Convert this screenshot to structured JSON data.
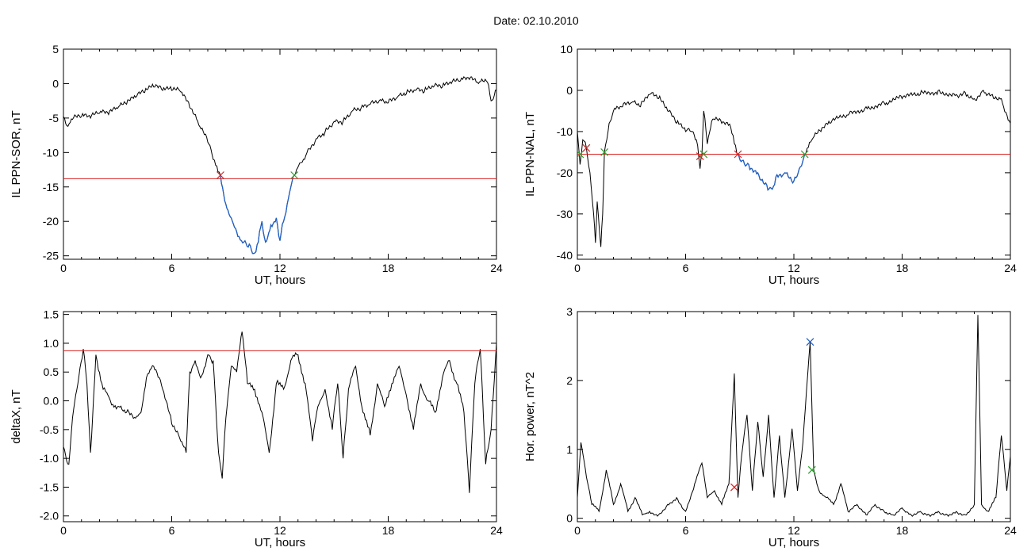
{
  "header": {
    "title": "Date:  02.10.2010"
  },
  "chart_data": [
    {
      "type": "line",
      "ylabel": "IL PPN-SOR, nT",
      "xlabel": "UT, hours",
      "xlim": [
        0,
        24
      ],
      "ylim": [
        -25.5,
        5
      ],
      "xticks": [
        "0",
        "6",
        "12",
        "18",
        "24"
      ],
      "yticks": [
        "5",
        "0",
        "-5",
        "-10",
        "-15",
        "-20",
        "-25"
      ],
      "threshold": -13.8,
      "series_color": "#000000",
      "highlight_color": "#1f5fc4",
      "threshold_color": "#d92020",
      "highlight_range": [
        8.7,
        12.8
      ],
      "points": [
        [
          0,
          -4.8
        ],
        [
          0.25,
          -6.2
        ],
        [
          0.5,
          -5.2
        ],
        [
          1,
          -4.8
        ],
        [
          1.5,
          -5
        ],
        [
          2,
          -4.3
        ],
        [
          2.5,
          -4.5
        ],
        [
          3,
          -3.6
        ],
        [
          3.5,
          -3
        ],
        [
          4,
          -2
        ],
        [
          4.5,
          -1.3
        ],
        [
          5,
          -0.5
        ],
        [
          5.5,
          -1
        ],
        [
          6,
          -1
        ],
        [
          6.5,
          -1.2
        ],
        [
          7,
          -3.5
        ],
        [
          7.5,
          -6
        ],
        [
          8,
          -8.5
        ],
        [
          8.3,
          -11
        ],
        [
          8.7,
          -13.3
        ],
        [
          9,
          -17.5
        ],
        [
          9.3,
          -19.5
        ],
        [
          9.6,
          -21.5
        ],
        [
          10,
          -23
        ],
        [
          10.3,
          -23.3
        ],
        [
          10.6,
          -24.6
        ],
        [
          10.8,
          -23
        ],
        [
          11,
          -20
        ],
        [
          11.2,
          -23
        ],
        [
          11.5,
          -20.5
        ],
        [
          11.8,
          -19.5
        ],
        [
          12,
          -22.8
        ],
        [
          12.2,
          -20
        ],
        [
          12.4,
          -17.5
        ],
        [
          12.6,
          -15
        ],
        [
          12.8,
          -13.3
        ],
        [
          13.1,
          -11.5
        ],
        [
          13.5,
          -10
        ],
        [
          14,
          -8
        ],
        [
          14.5,
          -7
        ],
        [
          15,
          -5.5
        ],
        [
          15.5,
          -5.5
        ],
        [
          16,
          -4
        ],
        [
          16.5,
          -3.5
        ],
        [
          17,
          -3
        ],
        [
          17.5,
          -2.5
        ],
        [
          18,
          -2.8
        ],
        [
          18.5,
          -2
        ],
        [
          19,
          -1.5
        ],
        [
          19.5,
          -1
        ],
        [
          20,
          -1.2
        ],
        [
          20.5,
          -0.5
        ],
        [
          21,
          -0.5
        ],
        [
          21.5,
          0
        ],
        [
          22,
          0.4
        ],
        [
          22.5,
          0.6
        ],
        [
          23,
          0
        ],
        [
          23.5,
          0.2
        ],
        [
          23.7,
          -2.5
        ],
        [
          24,
          -1
        ]
      ],
      "markers": [
        {
          "x": 8.7,
          "y": -13.3,
          "color": "#d92020"
        },
        {
          "x": 12.8,
          "y": -13.3,
          "color": "#2aa02a"
        }
      ]
    },
    {
      "type": "line",
      "ylabel": "IL PPN-NAL, nT",
      "xlabel": "UT, hours",
      "xlim": [
        0,
        24
      ],
      "ylim": [
        -41,
        10
      ],
      "xticks": [
        "0",
        "6",
        "12",
        "18",
        "24"
      ],
      "yticks": [
        "10",
        "0",
        "-10",
        "-20",
        "-30",
        "-40"
      ],
      "threshold": -15.5,
      "series_color": "#000000",
      "highlight_color": "#1f5fc4",
      "threshold_color": "#d92020",
      "highlight_range": [
        8.9,
        12.6
      ],
      "points": [
        [
          0,
          -10
        ],
        [
          0.15,
          -18
        ],
        [
          0.3,
          -12
        ],
        [
          0.5,
          -14
        ],
        [
          0.7,
          -20
        ],
        [
          0.9,
          -30
        ],
        [
          1.0,
          -37
        ],
        [
          1.1,
          -27
        ],
        [
          1.3,
          -38
        ],
        [
          1.4,
          -30
        ],
        [
          1.5,
          -15
        ],
        [
          1.7,
          -10
        ],
        [
          2,
          -5
        ],
        [
          2.5,
          -4
        ],
        [
          3,
          -3
        ],
        [
          3.5,
          -4
        ],
        [
          4,
          -1
        ],
        [
          4.5,
          -2
        ],
        [
          5,
          -5
        ],
        [
          5.5,
          -8
        ],
        [
          6,
          -10
        ],
        [
          6.3,
          -10
        ],
        [
          6.6,
          -12
        ],
        [
          6.8,
          -19
        ],
        [
          6.9,
          -16
        ],
        [
          7,
          -5
        ],
        [
          7.2,
          -13
        ],
        [
          7.5,
          -7
        ],
        [
          8,
          -8
        ],
        [
          8.5,
          -9
        ],
        [
          8.9,
          -15.5
        ],
        [
          9.2,
          -17
        ],
        [
          9.5,
          -18
        ],
        [
          10,
          -20
        ],
        [
          10.5,
          -23
        ],
        [
          10.8,
          -24
        ],
        [
          11,
          -21
        ],
        [
          11.5,
          -20
        ],
        [
          12,
          -22
        ],
        [
          12.3,
          -19
        ],
        [
          12.6,
          -15.5
        ],
        [
          13,
          -12
        ],
        [
          13.5,
          -10
        ],
        [
          14,
          -8
        ],
        [
          15,
          -6
        ],
        [
          16,
          -4
        ],
        [
          17,
          -3
        ],
        [
          18,
          -2
        ],
        [
          19,
          -1
        ],
        [
          20,
          0
        ],
        [
          21,
          -1
        ],
        [
          21.5,
          -0.5
        ],
        [
          22,
          -2
        ],
        [
          22.5,
          0
        ],
        [
          23,
          -1
        ],
        [
          23.5,
          -2
        ],
        [
          24,
          -8
        ]
      ],
      "markers": [
        {
          "x": 0.15,
          "y": -15.5,
          "color": "#2aa02a"
        },
        {
          "x": 0.5,
          "y": -14,
          "color": "#d92020"
        },
        {
          "x": 1.5,
          "y": -15,
          "color": "#2aa02a"
        },
        {
          "x": 6.8,
          "y": -16,
          "color": "#d92020"
        },
        {
          "x": 7.0,
          "y": -15.5,
          "color": "#2aa02a"
        },
        {
          "x": 8.9,
          "y": -15.5,
          "color": "#d92020"
        },
        {
          "x": 12.6,
          "y": -15.5,
          "color": "#2aa02a"
        }
      ]
    },
    {
      "type": "line",
      "ylabel": "deltaX, nT",
      "xlabel": "UT, hours",
      "xlim": [
        0,
        24
      ],
      "ylim": [
        -2.1,
        1.55
      ],
      "xticks": [
        "0",
        "6",
        "12",
        "18",
        "24"
      ],
      "yticks": [
        "1.5",
        "1.0",
        "0.5",
        "0.0",
        "-0.5",
        "-1.0",
        "-1.5",
        "-2.0"
      ],
      "threshold": 0.87,
      "series_color": "#000000",
      "threshold_color": "#d92020",
      "points": [
        [
          0,
          -0.8
        ],
        [
          0.3,
          -1.1
        ],
        [
          0.5,
          -0.3
        ],
        [
          0.8,
          0.3
        ],
        [
          1.1,
          0.9
        ],
        [
          1.3,
          0.3
        ],
        [
          1.5,
          -0.9
        ],
        [
          1.8,
          0.8
        ],
        [
          2.2,
          0.2
        ],
        [
          2.6,
          0
        ],
        [
          3,
          -0.1
        ],
        [
          3.5,
          -0.2
        ],
        [
          4,
          -0.3
        ],
        [
          4.3,
          -0.2
        ],
        [
          4.6,
          0.4
        ],
        [
          5,
          0.6
        ],
        [
          5.5,
          0.2
        ],
        [
          6,
          -0.4
        ],
        [
          6.5,
          -0.7
        ],
        [
          6.8,
          -0.9
        ],
        [
          7,
          0.5
        ],
        [
          7.3,
          0.7
        ],
        [
          7.6,
          0.4
        ],
        [
          8,
          0.8
        ],
        [
          8.3,
          0.7
        ],
        [
          8.6,
          -0.9
        ],
        [
          8.8,
          -1.35
        ],
        [
          9,
          -0.3
        ],
        [
          9.3,
          0.6
        ],
        [
          9.6,
          0.5
        ],
        [
          9.9,
          1.2
        ],
        [
          10.2,
          0.3
        ],
        [
          10.6,
          0.2
        ],
        [
          11,
          -0.2
        ],
        [
          11.4,
          -0.9
        ],
        [
          11.8,
          0.3
        ],
        [
          12.2,
          0.2
        ],
        [
          12.6,
          0.7
        ],
        [
          13,
          0.8
        ],
        [
          13.4,
          0.3
        ],
        [
          13.8,
          -0.7
        ],
        [
          14.1,
          -0.1
        ],
        [
          14.5,
          0.2
        ],
        [
          14.9,
          -0.5
        ],
        [
          15.2,
          0.3
        ],
        [
          15.5,
          -1.0
        ],
        [
          15.8,
          0.2
        ],
        [
          16.2,
          0.6
        ],
        [
          16.6,
          -0.2
        ],
        [
          17,
          -0.6
        ],
        [
          17.4,
          0.3
        ],
        [
          17.8,
          -0.1
        ],
        [
          18.2,
          0.3
        ],
        [
          18.6,
          0.6
        ],
        [
          19,
          0.1
        ],
        [
          19.4,
          -0.5
        ],
        [
          19.8,
          0.3
        ],
        [
          20.2,
          0
        ],
        [
          20.6,
          -0.2
        ],
        [
          21,
          0.4
        ],
        [
          21.4,
          0.7
        ],
        [
          21.8,
          0.3
        ],
        [
          22.2,
          -0.2
        ],
        [
          22.5,
          -1.6
        ],
        [
          22.8,
          0.3
        ],
        [
          23.1,
          0.9
        ],
        [
          23.4,
          -1.1
        ],
        [
          23.7,
          -0.5
        ],
        [
          24,
          1.0
        ]
      ],
      "markers": []
    },
    {
      "type": "line",
      "ylabel": "Hor. power, nT^2",
      "xlabel": "UT, hours",
      "xlim": [
        0,
        24
      ],
      "ylim": [
        -0.05,
        3.0
      ],
      "xticks": [
        "0",
        "6",
        "12",
        "18",
        "24"
      ],
      "yticks": [
        "3",
        "2",
        "1",
        "0"
      ],
      "series_color": "#000000",
      "points": [
        [
          0,
          0.3
        ],
        [
          0.2,
          1.1
        ],
        [
          0.5,
          0.6
        ],
        [
          0.8,
          0.2
        ],
        [
          1.2,
          0.1
        ],
        [
          1.6,
          0.7
        ],
        [
          2,
          0.2
        ],
        [
          2.4,
          0.5
        ],
        [
          2.8,
          0.1
        ],
        [
          3.2,
          0.3
        ],
        [
          3.6,
          0.05
        ],
        [
          4,
          0.1
        ],
        [
          4.5,
          0.05
        ],
        [
          5,
          0.2
        ],
        [
          5.5,
          0.3
        ],
        [
          6,
          0.1
        ],
        [
          6.5,
          0.5
        ],
        [
          6.9,
          0.8
        ],
        [
          7.2,
          0.3
        ],
        [
          7.6,
          0.4
        ],
        [
          8,
          0.2
        ],
        [
          8.4,
          0.5
        ],
        [
          8.7,
          2.1
        ],
        [
          8.9,
          0.3
        ],
        [
          9.1,
          0.9
        ],
        [
          9.4,
          1.5
        ],
        [
          9.7,
          0.4
        ],
        [
          10,
          1.4
        ],
        [
          10.3,
          0.6
        ],
        [
          10.6,
          1.5
        ],
        [
          10.9,
          0.3
        ],
        [
          11.2,
          1.2
        ],
        [
          11.5,
          0.3
        ],
        [
          11.9,
          1.3
        ],
        [
          12.2,
          0.4
        ],
        [
          12.5,
          1.1
        ],
        [
          12.9,
          2.56
        ],
        [
          13.1,
          0.7
        ],
        [
          13.4,
          0.4
        ],
        [
          13.8,
          0.3
        ],
        [
          14.2,
          0.2
        ],
        [
          14.6,
          0.5
        ],
        [
          15,
          0.1
        ],
        [
          15.5,
          0.2
        ],
        [
          16,
          0.05
        ],
        [
          16.5,
          0.2
        ],
        [
          17,
          0.1
        ],
        [
          17.5,
          0.05
        ],
        [
          18,
          0.15
        ],
        [
          18.5,
          0.05
        ],
        [
          19,
          0.1
        ],
        [
          19.5,
          0.05
        ],
        [
          20,
          0.1
        ],
        [
          20.5,
          0.05
        ],
        [
          21,
          0.1
        ],
        [
          21.5,
          0.05
        ],
        [
          22,
          0.2
        ],
        [
          22.2,
          2.95
        ],
        [
          22.4,
          0.2
        ],
        [
          22.8,
          0.1
        ],
        [
          23.2,
          0.3
        ],
        [
          23.5,
          1.2
        ],
        [
          23.8,
          0.4
        ],
        [
          24,
          0.9
        ]
      ],
      "markers": [
        {
          "x": 8.7,
          "y": 0.45,
          "color": "#d92020"
        },
        {
          "x": 12.9,
          "y": 2.56,
          "color": "#1f5fc4"
        },
        {
          "x": 13.0,
          "y": 0.7,
          "color": "#2aa02a"
        }
      ]
    }
  ]
}
